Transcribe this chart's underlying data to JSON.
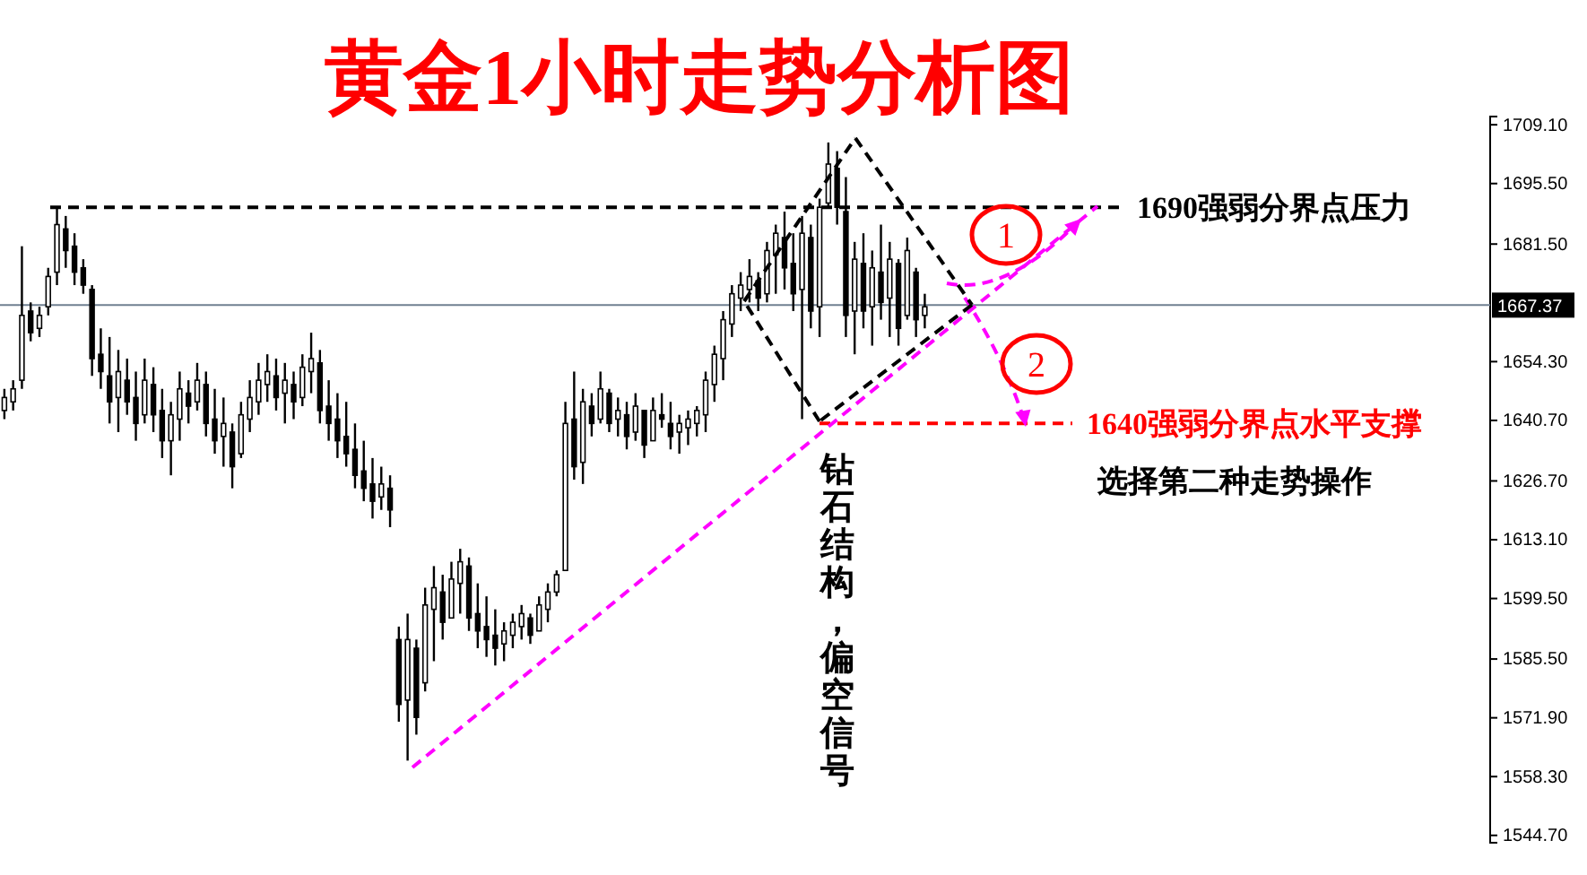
{
  "chart_data": {
    "type": "candlestick",
    "title": "黄金1小时走势分析图",
    "color": "#000000",
    "categories": [
      null,
      null,
      null,
      null,
      null,
      null,
      null,
      null,
      null,
      null,
      null,
      null,
      null,
      null,
      null,
      null,
      null,
      null,
      null,
      null,
      null,
      null,
      null,
      null,
      null,
      null,
      null,
      null,
      null,
      null,
      null,
      null,
      null,
      null,
      null,
      null,
      null,
      null,
      null,
      null,
      null,
      null,
      null,
      null,
      null,
      null,
      null,
      null,
      null,
      null,
      null,
      null,
      null,
      null,
      null,
      null,
      null,
      null,
      null,
      null,
      null,
      null,
      null,
      null,
      null,
      null,
      null,
      null,
      null,
      null,
      null,
      null,
      null,
      null,
      null,
      null,
      null,
      null,
      null,
      null,
      null,
      null,
      null,
      null,
      null,
      null,
      null,
      null,
      null,
      null,
      null,
      null,
      null,
      null,
      null,
      null,
      null,
      null,
      null,
      null,
      null,
      null,
      null,
      null,
      null,
      null,
      null,
      null,
      null,
      null,
      null,
      null,
      null,
      null,
      null,
      null,
      null,
      null,
      null,
      null,
      null,
      null,
      null,
      null,
      null,
      null,
      null,
      null,
      null,
      null,
      null,
      null,
      null,
      null,
      null,
      null,
      null,
      null,
      null,
      null,
      null,
      null,
      null,
      null,
      null,
      null,
      null,
      null,
      null,
      null,
      null,
      null,
      null,
      null,
      null,
      null,
      null,
      null,
      null,
      null,
      null,
      null,
      null,
      null,
      null,
      null,
      null,
      null,
      null,
      null
    ],
    "ohlc": [
      [
        1643,
        1648,
        1641,
        1646
      ],
      [
        1645,
        1650,
        1643,
        1648
      ],
      [
        1650,
        1681,
        1648,
        1665
      ],
      [
        1666,
        1668,
        1659,
        1661
      ],
      [
        1662,
        1667,
        1660,
        1665
      ],
      [
        1667,
        1676,
        1665,
        1674
      ],
      [
        1675,
        1690,
        1672,
        1686
      ],
      [
        1685,
        1688,
        1676,
        1680
      ],
      [
        1681,
        1684,
        1672,
        1675
      ],
      [
        1676,
        1678,
        1670,
        1672
      ],
      [
        1671,
        1672,
        1651,
        1655
      ],
      [
        1656,
        1662,
        1648,
        1652
      ],
      [
        1651,
        1660,
        1640,
        1645
      ],
      [
        1646,
        1657,
        1638,
        1652
      ],
      [
        1650,
        1655,
        1642,
        1645
      ],
      [
        1646,
        1652,
        1636,
        1640
      ],
      [
        1642,
        1655,
        1640,
        1650
      ],
      [
        1649,
        1653,
        1638,
        1642
      ],
      [
        1643,
        1648,
        1632,
        1636
      ],
      [
        1636,
        1645,
        1628,
        1642
      ],
      [
        1641,
        1652,
        1636,
        1648
      ],
      [
        1647,
        1650,
        1640,
        1644
      ],
      [
        1645,
        1654,
        1643,
        1650
      ],
      [
        1649,
        1652,
        1637,
        1640
      ],
      [
        1641,
        1648,
        1633,
        1636
      ],
      [
        1637,
        1646,
        1630,
        1640
      ],
      [
        1638,
        1640,
        1625,
        1630
      ],
      [
        1633,
        1645,
        1632,
        1642
      ],
      [
        1641,
        1650,
        1638,
        1646
      ],
      [
        1645,
        1654,
        1642,
        1650
      ],
      [
        1649,
        1656,
        1645,
        1652
      ],
      [
        1651,
        1655,
        1643,
        1646
      ],
      [
        1647,
        1654,
        1640,
        1650
      ],
      [
        1649,
        1652,
        1641,
        1645
      ],
      [
        1646,
        1656,
        1644,
        1653
      ],
      [
        1652,
        1661,
        1647,
        1655
      ],
      [
        1654,
        1657,
        1640,
        1643
      ],
      [
        1644,
        1650,
        1636,
        1640
      ],
      [
        1641,
        1647,
        1632,
        1636
      ],
      [
        1637,
        1645,
        1630,
        1633
      ],
      [
        1634,
        1640,
        1625,
        1628
      ],
      [
        1629,
        1636,
        1622,
        1625
      ],
      [
        1626,
        1632,
        1618,
        1622
      ],
      [
        1623,
        1630,
        1620,
        1626
      ],
      [
        1625,
        1628,
        1616,
        1620
      ],
      [
        1590,
        1593,
        1571,
        1575
      ],
      [
        1576,
        1596,
        1562,
        1590
      ],
      [
        1588,
        1590,
        1568,
        1572
      ],
      [
        1580,
        1602,
        1578,
        1598
      ],
      [
        1597,
        1607,
        1585,
        1602
      ],
      [
        1601,
        1605,
        1590,
        1594
      ],
      [
        1595,
        1608,
        1595,
        1604
      ],
      [
        1603,
        1611,
        1596,
        1608
      ],
      [
        1607,
        1609,
        1592,
        1595
      ],
      [
        1596,
        1603,
        1588,
        1592
      ],
      [
        1593,
        1600,
        1586,
        1590
      ],
      [
        1591,
        1597,
        1584,
        1588
      ],
      [
        1589,
        1594,
        1585,
        1592
      ],
      [
        1591,
        1596,
        1588,
        1594
      ],
      [
        1593,
        1598,
        1590,
        1596
      ],
      [
        1595,
        1596,
        1589,
        1591
      ],
      [
        1592,
        1600,
        1592,
        1598
      ],
      [
        1597,
        1603,
        1594,
        1601
      ],
      [
        1601,
        1606,
        1600,
        1605
      ],
      [
        1606,
        1645,
        1606,
        1640
      ],
      [
        1641,
        1652,
        1627,
        1630
      ],
      [
        1631,
        1648,
        1626,
        1645
      ],
      [
        1644,
        1647,
        1637,
        1640
      ],
      [
        1641,
        1652,
        1640,
        1648
      ],
      [
        1647,
        1648,
        1638,
        1640
      ],
      [
        1641,
        1646,
        1637,
        1643
      ],
      [
        1642,
        1645,
        1634,
        1637
      ],
      [
        1638,
        1647,
        1636,
        1644
      ],
      [
        1643,
        1643,
        1632,
        1635
      ],
      [
        1636,
        1646,
        1636,
        1643
      ],
      [
        1642,
        1647,
        1639,
        1641
      ],
      [
        1640,
        1645,
        1634,
        1637
      ],
      [
        1638,
        1642,
        1633,
        1640
      ],
      [
        1639,
        1643,
        1635,
        1641
      ],
      [
        1640,
        1644,
        1637,
        1643
      ],
      [
        1642,
        1652,
        1638,
        1650
      ],
      [
        1649,
        1658,
        1645,
        1656
      ],
      [
        1655,
        1666,
        1650,
        1664
      ],
      [
        1663,
        1672,
        1660,
        1670
      ],
      [
        1669,
        1675,
        1666,
        1672
      ],
      [
        1671,
        1678,
        1668,
        1674
      ],
      [
        1673,
        1675,
        1666,
        1669
      ],
      [
        1670,
        1682,
        1668,
        1680
      ],
      [
        1679,
        1686,
        1670,
        1684
      ],
      [
        1683,
        1689,
        1671,
        1676
      ],
      [
        1677,
        1684,
        1666,
        1670
      ],
      [
        1671,
        1688,
        1641,
        1684
      ],
      [
        1683,
        1686,
        1662,
        1666
      ],
      [
        1667,
        1692,
        1660,
        1690
      ],
      [
        1691,
        1705,
        1690,
        1700
      ],
      [
        1699,
        1703,
        1686,
        1690
      ],
      [
        1689,
        1697,
        1660,
        1665
      ],
      [
        1666,
        1682,
        1656,
        1678
      ],
      [
        1677,
        1684,
        1662,
        1666
      ],
      [
        1667,
        1680,
        1658,
        1676
      ],
      [
        1675,
        1686,
        1664,
        1668
      ],
      [
        1669,
        1682,
        1660,
        1678
      ],
      [
        1677,
        1678,
        1658,
        1662
      ],
      [
        1665,
        1683,
        1664,
        1680
      ],
      [
        1675,
        1676,
        1660,
        1664
      ],
      [
        1665,
        1670,
        1662,
        1667
      ],
      null,
      null,
      null,
      null,
      null,
      null,
      null,
      null,
      null,
      null,
      null,
      null,
      null,
      null,
      null,
      null,
      null,
      null,
      null,
      null,
      null,
      null,
      null,
      null,
      null,
      null,
      null,
      null,
      null,
      null,
      null,
      null,
      null,
      null,
      null,
      null,
      null,
      null,
      null,
      null,
      null,
      null,
      null,
      null,
      null,
      null,
      null,
      null,
      null,
      null,
      null,
      null,
      null,
      null,
      null,
      null,
      null,
      null,
      null,
      null,
      null,
      null,
      null,
      null
    ],
    "ylim": [
      1543,
      1711
    ],
    "yticks": [
      {
        "value": 1709.1,
        "label": "1709.10"
      },
      {
        "value": 1695.5,
        "label": "1695.50"
      },
      {
        "value": 1681.5,
        "label": "1681.50"
      },
      {
        "value": 1654.3,
        "label": "1654.30"
      },
      {
        "value": 1640.7,
        "label": "1640.70"
      },
      {
        "value": 1626.7,
        "label": "1626.70"
      },
      {
        "value": 1613.1,
        "label": "1613.10"
      },
      {
        "value": 1599.5,
        "label": "1599.50"
      },
      {
        "value": 1585.5,
        "label": "1585.50"
      },
      {
        "value": 1571.9,
        "label": "1571.90"
      },
      {
        "value": 1558.3,
        "label": "1558.30"
      },
      {
        "value": 1544.7,
        "label": "1544.70"
      }
    ],
    "tick_labels": "y",
    "ref_lines": [
      {
        "axis": "y",
        "value": 1690,
        "label": "1690强弱分界点压力",
        "color": "#000000",
        "line_style": "dashed"
      },
      {
        "axis": "y",
        "value": 1640,
        "label": "1640强弱分界点水平支撑",
        "color": "#ff0000",
        "line_style": "dashed"
      },
      {
        "axis": "y",
        "value": 1667.37,
        "label": "1667.37",
        "color": "#708090",
        "line_style": "solid"
      }
    ],
    "annotations": [
      "钻石结构，偏空信号",
      "选择第二种走势操作",
      "1",
      "2"
    ]
  }
}
